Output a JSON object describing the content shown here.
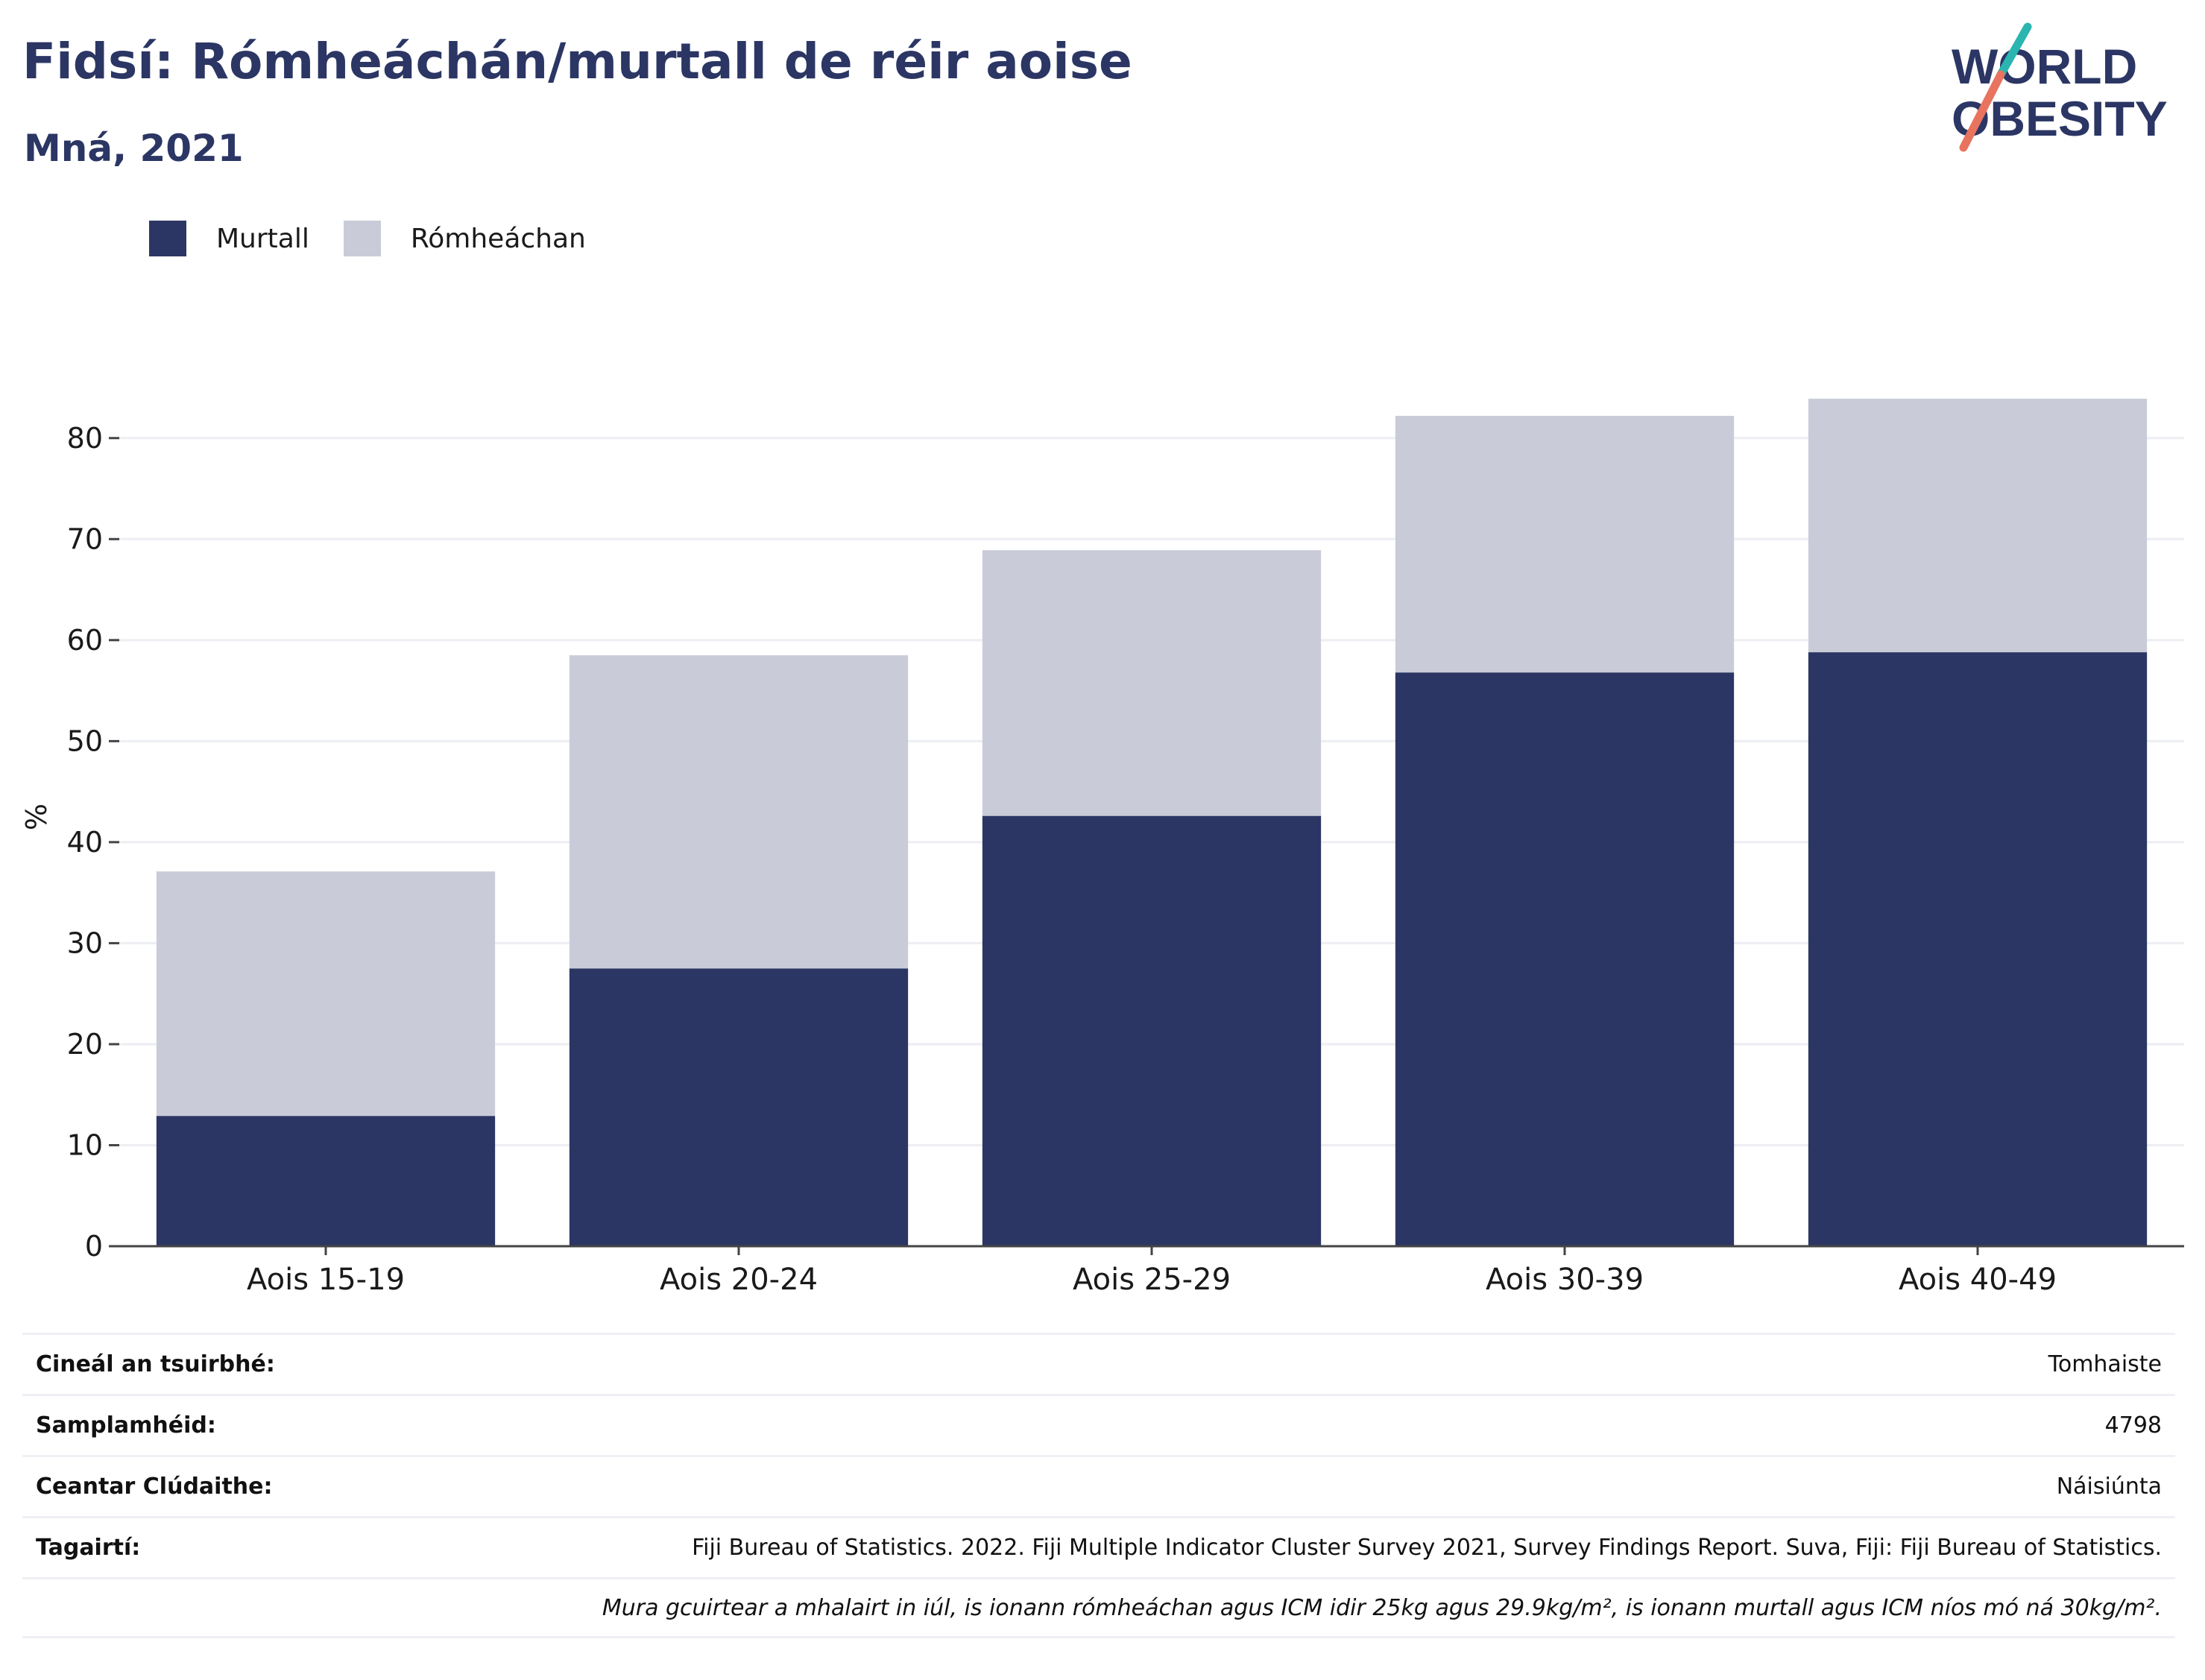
{
  "title": "Fidsí: Rómheáchán/murtall de réir aoise",
  "subtitle": "Mná, 2021",
  "logo": {
    "line1": "WORLD",
    "line2": "OBESITY",
    "accent_colors": [
      "#2bb5b0",
      "#e8735f"
    ]
  },
  "legend": [
    {
      "label": "Murtall",
      "color": "#2b3664"
    },
    {
      "label": "Rómheáchan",
      "color": "#c9ccd8"
    }
  ],
  "chart_data": {
    "type": "bar",
    "stacked": true,
    "categories": [
      "Aois 15-19",
      "Aois 20-24",
      "Aois 25-29",
      "Aois 30-39",
      "Aois 40-49"
    ],
    "series": [
      {
        "name": "Murtall",
        "color": "#2b3664",
        "values": [
          12.9,
          27.5,
          42.6,
          56.8,
          58.8
        ]
      },
      {
        "name": "Rómheáchan",
        "color": "#c9ccd8",
        "values": [
          24.2,
          31.0,
          26.3,
          25.4,
          25.1
        ]
      }
    ],
    "ylabel": "%",
    "ylim": [
      0,
      85
    ],
    "yticks": [
      0,
      10,
      20,
      30,
      40,
      50,
      60,
      70,
      80
    ],
    "grid": true,
    "legend_position": "top-left"
  },
  "info_table": [
    {
      "key": "Cineál an tsuirbhé:",
      "value": "Tomhaiste"
    },
    {
      "key": "Samplamhéid:",
      "value": "4798"
    },
    {
      "key": "Ceantar Clúdaithe:",
      "value": "Náisiúnta"
    },
    {
      "key": "Tagairtí:",
      "value": "Fiji Bureau of Statistics. 2022. Fiji Multiple Indicator Cluster Survey 2021, Survey Findings Report. Suva, Fiji: Fiji Bureau of Statistics."
    }
  ],
  "footnote": "Mura gcuirtear a mhalairt in iúl, is ionann rómheáchan agus ICM idir 25kg agus 29.9kg/m², is ionann murtall agus ICM níos mó ná 30kg/m²."
}
